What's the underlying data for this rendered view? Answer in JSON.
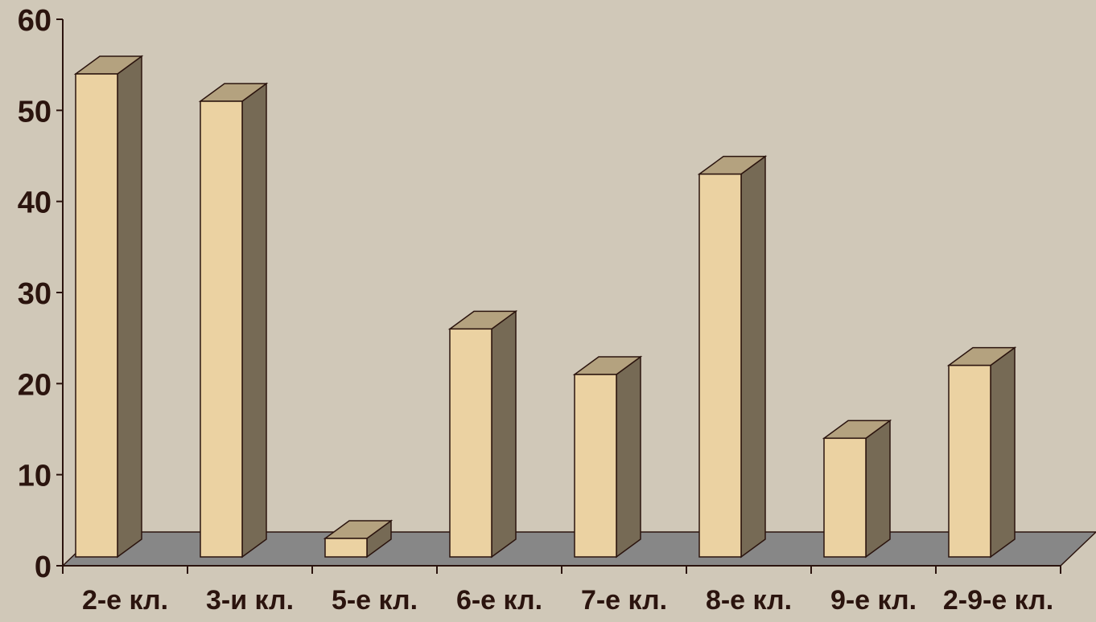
{
  "colors": {
    "background": "#d0c8b8",
    "floor": "#878787",
    "bar_front": "#ebd2a2",
    "bar_side": "#766a55",
    "bar_top": "#b4a27f",
    "outline": "#2b140e",
    "text": "#2b140e"
  },
  "chart_data": {
    "type": "bar",
    "style": "3d-column",
    "categories": [
      "2-е кл.",
      "3-и кл.",
      "5-е кл.",
      "6-е кл.",
      "7-е кл.",
      "8-е кл.",
      "9-е кл.",
      "2-9-е кл."
    ],
    "values": [
      54,
      51,
      3,
      26,
      21,
      43,
      14,
      22
    ],
    "ylim": [
      0,
      60
    ],
    "yticks": [
      0,
      10,
      20,
      30,
      40,
      50,
      60
    ],
    "title": "",
    "xlabel": "",
    "ylabel": "",
    "grid": false,
    "legend": "none"
  }
}
